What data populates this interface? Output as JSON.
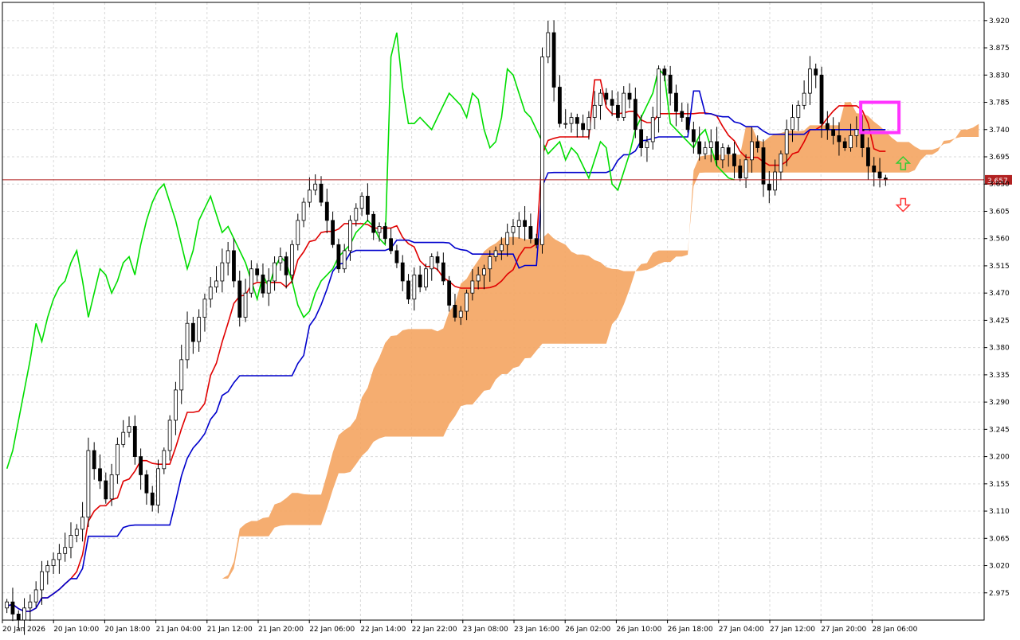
{
  "chart_data": {
    "type": "candlestick",
    "indicator": "Ichimoku Kinko Hyo",
    "current_price": "3.657",
    "ylim": [
      2.93,
      3.95
    ],
    "y_ticks": [
      "3.920",
      "3.875",
      "3.830",
      "3.785",
      "3.740",
      "3.695",
      "3.650",
      "3.605",
      "3.560",
      "3.515",
      "3.470",
      "3.425",
      "3.380",
      "3.335",
      "3.290",
      "3.245",
      "3.200",
      "3.155",
      "3.110",
      "3.065",
      "3.020",
      "2.975"
    ],
    "x_ticks": [
      "20 Jan 2026",
      "20 Jan 10:00",
      "20 Jan 18:00",
      "21 Jan 04:00",
      "21 Jan 12:00",
      "21 Jan 20:00",
      "22 Jan 06:00",
      "22 Jan 14:00",
      "22 Jan 22:00",
      "23 Jan 08:00",
      "23 Jan 16:00",
      "26 Jan 02:00",
      "26 Jan 10:00",
      "26 Jan 18:00",
      "27 Jan 04:00",
      "27 Jan 12:00",
      "27 Jan 20:00",
      "28 Jan 06:00"
    ],
    "colors": {
      "background": "#ffffff",
      "grid": "#d9d9d9",
      "axis": "#000000",
      "bull_body": "#ffffff",
      "bear_body": "#000000",
      "tenkan": "#e00000",
      "kijun": "#0000cc",
      "chikou": "#00dd00",
      "cloud": "#f4a460",
      "price_line": "#b22222",
      "highlight_box": "#ff33ff",
      "arrow_up": "#33cc33",
      "arrow_down": "#ff3333"
    },
    "series": {
      "close": [
        2.96,
        2.94,
        2.93,
        2.95,
        2.96,
        2.98,
        3.01,
        3.02,
        3.03,
        3.04,
        3.05,
        3.07,
        3.08,
        3.1,
        3.21,
        3.18,
        3.16,
        3.13,
        3.17,
        3.22,
        3.24,
        3.25,
        3.2,
        3.17,
        3.14,
        3.12,
        3.18,
        3.21,
        3.26,
        3.31,
        3.36,
        3.42,
        3.39,
        3.43,
        3.46,
        3.48,
        3.49,
        3.52,
        3.54,
        3.49,
        3.43,
        3.47,
        3.51,
        3.5,
        3.47,
        3.49,
        3.52,
        3.53,
        3.5,
        3.55,
        3.59,
        3.62,
        3.64,
        3.65,
        3.62,
        3.59,
        3.55,
        3.51,
        3.54,
        3.59,
        3.61,
        3.63,
        3.6,
        3.57,
        3.58,
        3.56,
        3.54,
        3.52,
        3.49,
        3.46,
        3.5,
        3.48,
        3.51,
        3.53,
        3.52,
        3.49,
        3.45,
        3.43,
        3.44,
        3.47,
        3.49,
        3.5,
        3.51,
        3.53,
        3.54,
        3.55,
        3.57,
        3.58,
        3.59,
        3.58,
        3.56,
        3.55,
        3.86,
        3.9,
        3.81,
        3.75,
        3.75,
        3.76,
        3.75,
        3.74,
        3.76,
        3.78,
        3.8,
        3.79,
        3.78,
        3.76,
        3.8,
        3.79,
        3.74,
        3.71,
        3.72,
        3.76,
        3.84,
        3.83,
        3.8,
        3.77,
        3.76,
        3.74,
        3.72,
        3.7,
        3.71,
        3.72,
        3.69,
        3.71,
        3.7,
        3.68,
        3.66,
        3.69,
        3.72,
        3.71,
        3.65,
        3.64,
        3.67,
        3.7,
        3.74,
        3.76,
        3.78,
        3.8,
        3.84,
        3.83,
        3.75,
        3.74,
        3.73,
        3.72,
        3.71,
        3.73,
        3.74,
        3.71,
        3.68,
        3.67,
        3.66,
        3.657
      ]
    }
  }
}
